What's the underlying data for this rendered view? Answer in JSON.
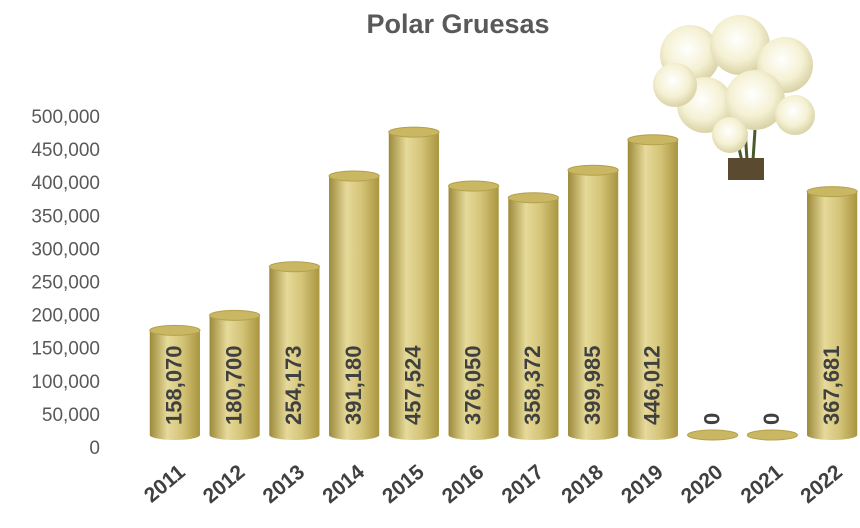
{
  "chart_data": {
    "type": "bar",
    "title": "Polar Gruesas",
    "categories": [
      "2011",
      "2012",
      "2013",
      "2014",
      "2015",
      "2016",
      "2017",
      "2018",
      "2019",
      "2020",
      "2021",
      "2022"
    ],
    "values": [
      158070,
      180700,
      254173,
      391180,
      457524,
      376050,
      358372,
      399985,
      446012,
      0,
      0,
      367681
    ],
    "value_labels": [
      "158,070",
      "180,700",
      "254,173",
      "391,180",
      "457,524",
      "376,050",
      "358,372",
      "399,985",
      "446,012",
      "0",
      "0",
      "367,681"
    ],
    "color": "#c9b763",
    "ylim": [
      0,
      500000
    ],
    "yticks": [
      0,
      {
        "value": 50000,
        "label": "50,000"
      },
      {
        "value": 100000,
        "label": "100,000"
      },
      {
        "value": 150000,
        "label": "150,000"
      },
      {
        "value": 200000,
        "label": "200,000"
      },
      {
        "value": 250000,
        "label": "250,000"
      },
      {
        "value": 300000,
        "label": "300,000"
      },
      {
        "value": 350000,
        "label": "350,000"
      },
      {
        "value": 400000,
        "label": "400,000"
      },
      {
        "value": 450000,
        "label": "450,000"
      },
      {
        "value": 500000,
        "label": "500,000"
      }
    ],
    "grid": false
  }
}
